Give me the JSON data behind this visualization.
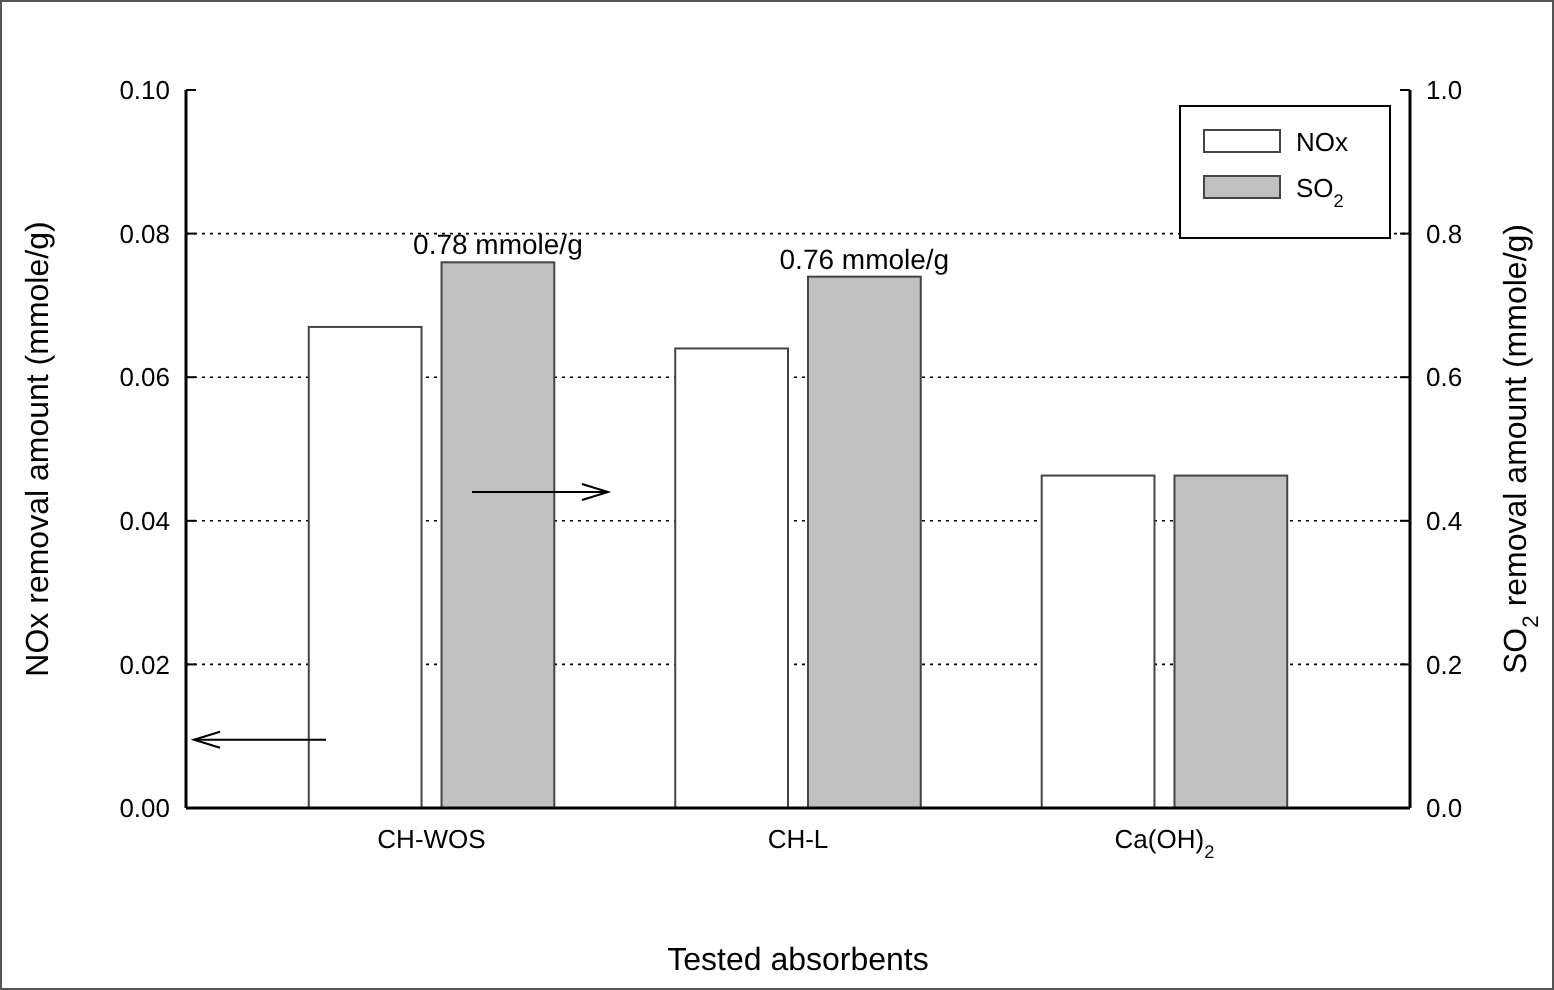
{
  "chart_data": {
    "type": "bar",
    "categories": [
      "CH-WOS",
      "CH-L",
      "Ca(OH)$_{2}$"
    ],
    "series": [
      {
        "name": "NOx",
        "color": "#ffffff",
        "values": [
          0.067,
          0.064,
          0.0463
        ]
      },
      {
        "name": "SO$_{2}$",
        "color": "#c0c0c0",
        "values": [
          0.76,
          0.74,
          0.463
        ],
        "axis": "y2"
      }
    ],
    "xlabel": "Tested absorbents",
    "ylabel": "NOx removal amount (mmole/g)",
    "y2label": "SO$_{2}$ removal amount (mmole/g)",
    "ylim": [
      0,
      0.1
    ],
    "yticks": [
      {
        "value": 0,
        "label": "0.00"
      },
      {
        "value": 0.02,
        "label": "0.02"
      },
      {
        "value": 0.04,
        "label": "0.04"
      },
      {
        "value": 0.06,
        "label": "0.06"
      },
      {
        "value": 0.08,
        "label": "0.08"
      },
      {
        "value": 0.1,
        "label": "0.10"
      }
    ],
    "y2lim": [
      0,
      1
    ],
    "y2ticks": [
      {
        "value": 0,
        "label": "0.0"
      },
      {
        "value": 0.2,
        "label": "0.2"
      },
      {
        "value": 0.4,
        "label": "0.4"
      },
      {
        "value": 0.6,
        "label": "0.6"
      },
      {
        "value": 0.8,
        "label": "0.8"
      },
      {
        "value": 1,
        "label": "1.0"
      }
    ],
    "annotations": [
      "0.78 mmole/g",
      "0.76 mmole/g"
    ],
    "grid": "y",
    "legend": "top right"
  }
}
